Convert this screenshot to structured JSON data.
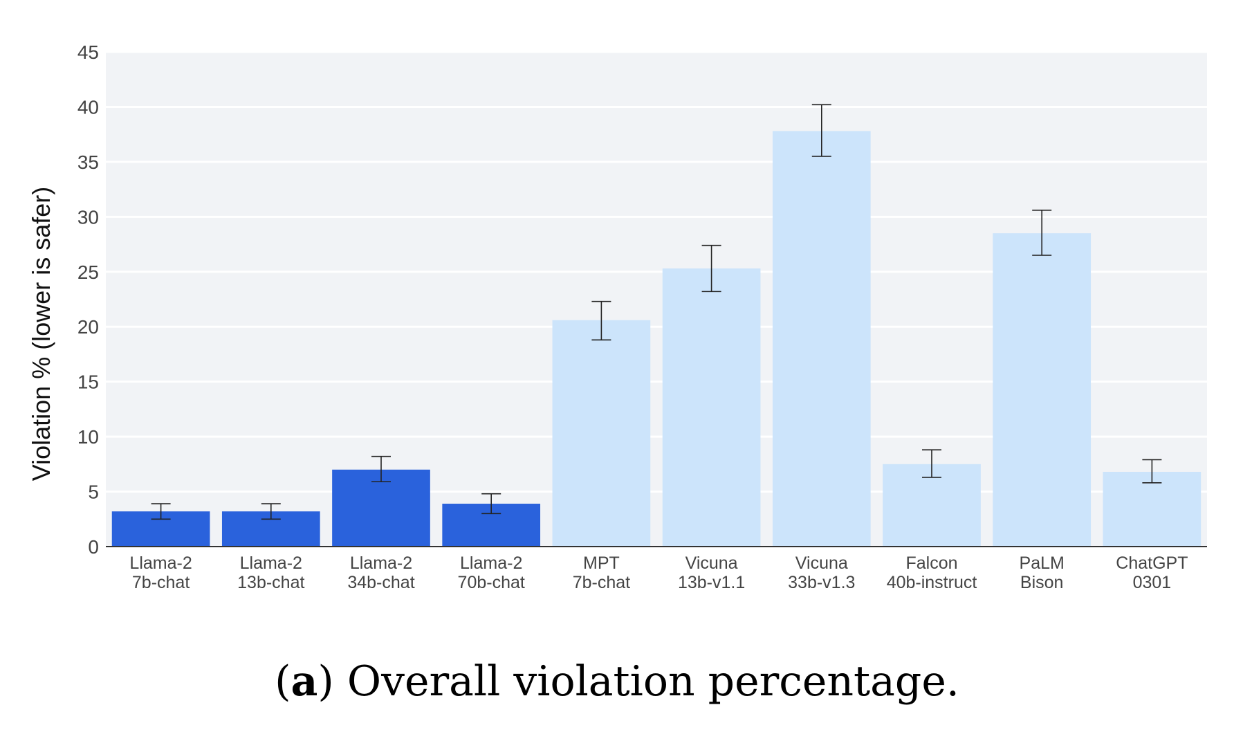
{
  "chart_data": {
    "type": "bar",
    "title": "",
    "xlabel": "",
    "ylabel": "Violation % (lower is safer)",
    "ylim": [
      0,
      45
    ],
    "yticks": [
      0,
      5,
      10,
      15,
      20,
      25,
      30,
      35,
      40,
      45
    ],
    "grid": true,
    "categories": [
      [
        "Llama-2",
        "7b-chat"
      ],
      [
        "Llama-2",
        "13b-chat"
      ],
      [
        "Llama-2",
        "34b-chat"
      ],
      [
        "Llama-2",
        "70b-chat"
      ],
      [
        "MPT",
        "7b-chat"
      ],
      [
        "Vicuna",
        "13b-v1.1"
      ],
      [
        "Vicuna",
        "33b-v1.3"
      ],
      [
        "Falcon",
        "40b-instruct"
      ],
      [
        "PaLM",
        "Bison"
      ],
      [
        "ChatGPT",
        "0301"
      ]
    ],
    "values": [
      3.2,
      3.2,
      7.0,
      3.9,
      20.6,
      25.3,
      37.8,
      7.5,
      28.5,
      6.8
    ],
    "error_low": [
      2.5,
      2.5,
      5.9,
      3.0,
      18.8,
      23.2,
      35.5,
      6.3,
      26.5,
      5.8
    ],
    "error_high": [
      3.9,
      3.9,
      8.2,
      4.8,
      22.3,
      27.4,
      40.2,
      8.8,
      30.6,
      7.9
    ],
    "bar_colors": [
      "#2a62dc",
      "#2a62dc",
      "#2a62dc",
      "#2a62dc",
      "#cce4fb",
      "#cce4fb",
      "#cce4fb",
      "#cce4fb",
      "#cce4fb",
      "#cce4fb"
    ]
  },
  "caption": {
    "tag": "a",
    "text": "Overall violation percentage."
  },
  "colors": {
    "plot_background": "#f1f3f6",
    "gridline": "#ffffff",
    "axis": "#333333",
    "error_bar": "#222222"
  }
}
